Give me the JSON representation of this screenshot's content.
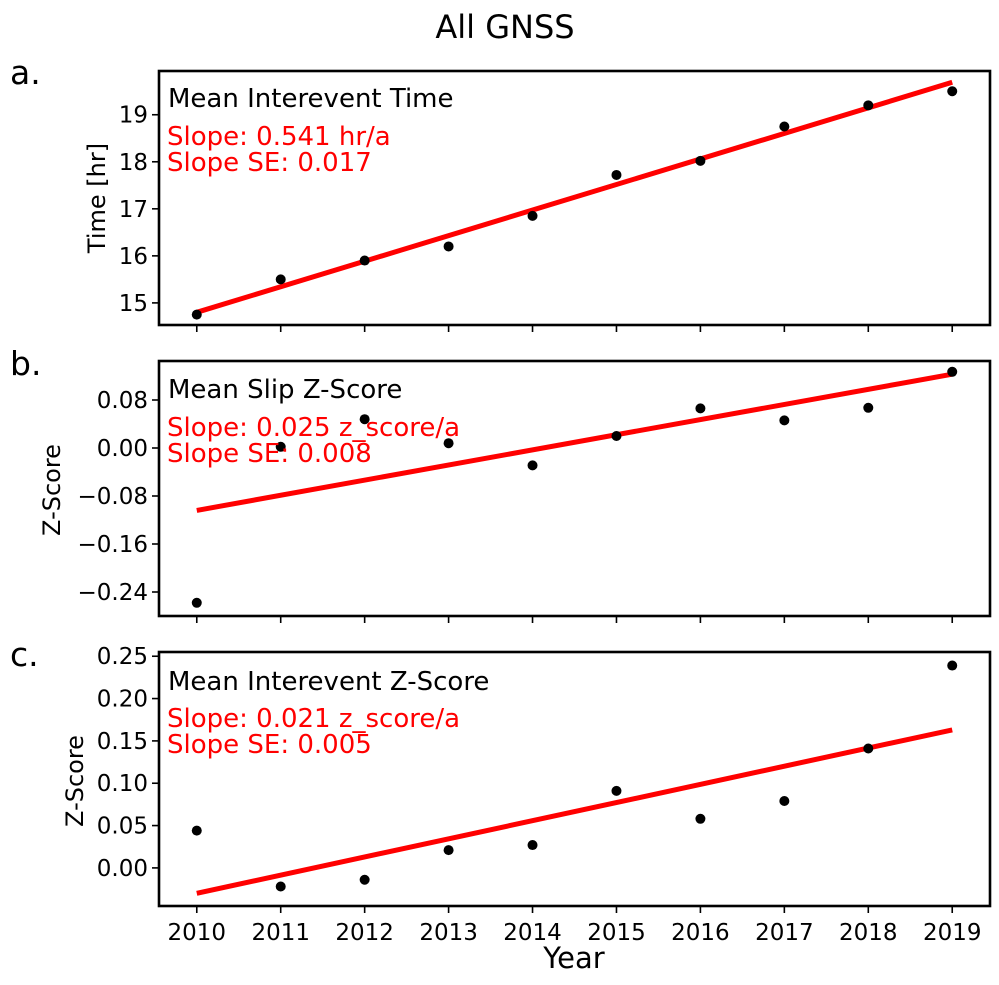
{
  "figure": {
    "title": "All GNSS",
    "xlabel": "Year"
  },
  "chart_data": [
    {
      "type": "scatter",
      "panel_label": "a.",
      "title": "Mean Interevent Time",
      "slope_text": "Slope: 0.541 hr/a",
      "slope_se_text": "Slope SE: 0.017",
      "xlabel": "",
      "ylabel": "Time [hr]",
      "xlim": [
        2009.55,
        2019.45
      ],
      "ylim": [
        14.53,
        19.93
      ],
      "xticks": [
        2010,
        2011,
        2012,
        2013,
        2014,
        2015,
        2016,
        2017,
        2018,
        2019
      ],
      "xtick_labels_visible": false,
      "yticks": [
        15,
        16,
        17,
        18,
        19
      ],
      "ytick_labels": [
        "15",
        "16",
        "17",
        "18",
        "19"
      ],
      "x": [
        2010,
        2011,
        2012,
        2013,
        2014,
        2015,
        2016,
        2017,
        2018,
        2019
      ],
      "y": [
        14.75,
        15.5,
        15.9,
        16.2,
        16.85,
        17.72,
        18.02,
        18.75,
        19.2,
        19.5
      ],
      "fit": {
        "x": [
          2010,
          2019
        ],
        "y": [
          14.8,
          19.69
        ]
      },
      "colors": {
        "points": "#000000",
        "fit": "#ff0000"
      },
      "grid": false
    },
    {
      "type": "scatter",
      "panel_label": "b.",
      "title": "Mean Slip Z-Score",
      "slope_text": "Slope: 0.025 z_score/a",
      "slope_se_text": "Slope SE: 0.008",
      "xlabel": "",
      "ylabel": "Z-Score",
      "xlim": [
        2009.55,
        2019.45
      ],
      "ylim": [
        -0.28,
        0.145
      ],
      "xticks": [
        2010,
        2011,
        2012,
        2013,
        2014,
        2015,
        2016,
        2017,
        2018,
        2019
      ],
      "xtick_labels_visible": false,
      "yticks": [
        -0.24,
        -0.16,
        -0.08,
        0.0,
        0.08
      ],
      "ytick_labels": [
        "−0.24",
        "−0.16",
        "−0.08",
        "0.00",
        "0.08"
      ],
      "x": [
        2010,
        2011,
        2012,
        2013,
        2014,
        2015,
        2016,
        2017,
        2018,
        2019
      ],
      "y": [
        -0.258,
        0.002,
        0.048,
        0.008,
        -0.029,
        0.02,
        0.066,
        0.046,
        0.067,
        0.127
      ],
      "fit": {
        "x": [
          2010,
          2019
        ],
        "y": [
          -0.104,
          0.123
        ]
      },
      "colors": {
        "points": "#000000",
        "fit": "#ff0000"
      },
      "grid": false
    },
    {
      "type": "scatter",
      "panel_label": "c.",
      "title": "Mean Interevent Z-Score",
      "slope_text": "Slope: 0.021 z_score/a",
      "slope_se_text": "Slope SE: 0.005",
      "xlabel": "Year",
      "ylabel": "Z-Score",
      "xlim": [
        2009.55,
        2019.45
      ],
      "ylim": [
        -0.045,
        0.255
      ],
      "xticks": [
        2010,
        2011,
        2012,
        2013,
        2014,
        2015,
        2016,
        2017,
        2018,
        2019
      ],
      "xtick_labels_visible": true,
      "xtick_labels": [
        "2010",
        "2011",
        "2012",
        "2013",
        "2014",
        "2015",
        "2016",
        "2017",
        "2018",
        "2019"
      ],
      "yticks": [
        0.0,
        0.05,
        0.1,
        0.15,
        0.2,
        0.25
      ],
      "ytick_labels": [
        "0.00",
        "0.05",
        "0.10",
        "0.15",
        "0.20",
        "0.25"
      ],
      "x": [
        2010,
        2011,
        2012,
        2013,
        2014,
        2015,
        2016,
        2017,
        2018,
        2019
      ],
      "y": [
        0.044,
        -0.022,
        -0.014,
        0.021,
        0.027,
        0.091,
        0.058,
        0.079,
        0.141,
        0.239
      ],
      "fit": {
        "x": [
          2010,
          2019
        ],
        "y": [
          -0.03,
          0.163
        ]
      },
      "colors": {
        "points": "#000000",
        "fit": "#ff0000"
      },
      "grid": false
    }
  ]
}
